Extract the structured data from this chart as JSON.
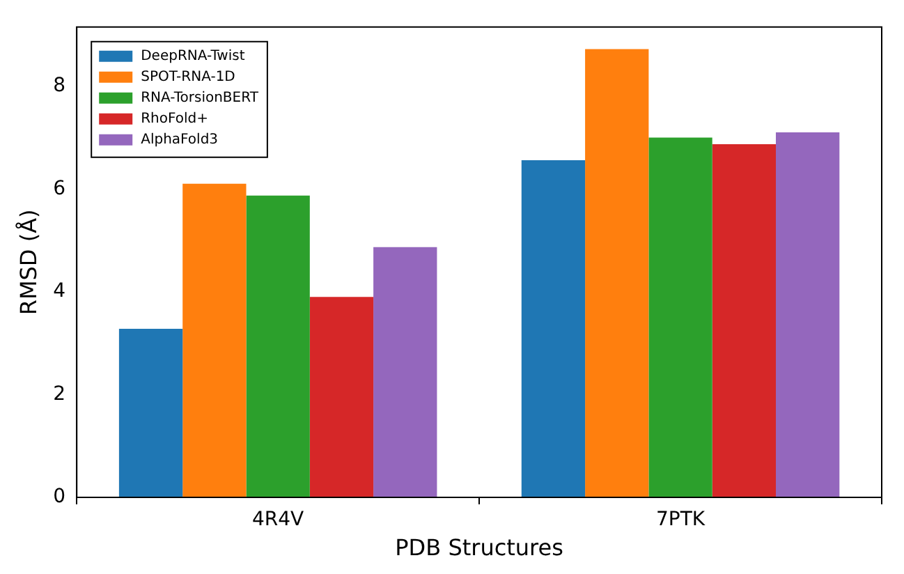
{
  "chart_data": {
    "type": "bar",
    "xlabel": "PDB Structures",
    "ylabel": "RMSD (Å)",
    "categories": [
      "4R4V",
      "7PTK"
    ],
    "series": [
      {
        "name": "DeepRNA-Twist",
        "color": "#1f77b4",
        "values": [
          3.28,
          6.56
        ]
      },
      {
        "name": "SPOT-RNA-1D",
        "color": "#ff7f0e",
        "values": [
          6.1,
          8.72
        ]
      },
      {
        "name": "RNA-TorsionBERT",
        "color": "#2ca02c",
        "values": [
          5.87,
          7.0
        ]
      },
      {
        "name": "RhoFold+",
        "color": "#d62728",
        "values": [
          3.9,
          6.87
        ]
      },
      {
        "name": "AlphaFold3",
        "color": "#9467bd",
        "values": [
          4.87,
          7.1
        ]
      }
    ],
    "ylim": [
      0,
      9.15
    ],
    "yticks": [
      0,
      2,
      4,
      6,
      8
    ],
    "grid": false,
    "legend": "top left"
  }
}
